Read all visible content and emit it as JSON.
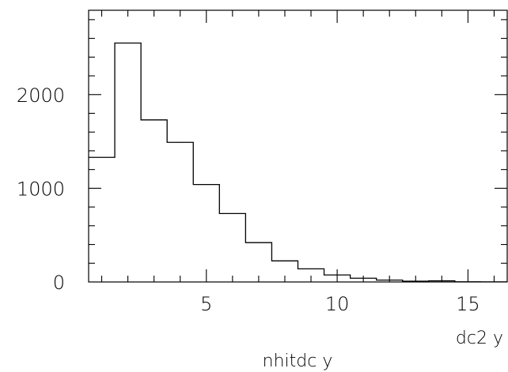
{
  "chart_data": {
    "type": "histogram",
    "title": "",
    "xlabel": "nhitdc y",
    "corner_label": "dc2 y",
    "ylabel": "",
    "xlim": [
      0.5,
      16.5
    ],
    "ylim": [
      0,
      2900
    ],
    "bin_width": 1,
    "bin_edges": [
      0.5,
      1.5,
      2.5,
      3.5,
      4.5,
      5.5,
      6.5,
      7.5,
      8.5,
      9.5,
      10.5,
      11.5,
      12.5,
      13.5,
      14.5,
      15.5,
      16.5
    ],
    "values": [
      1330,
      2550,
      1730,
      1490,
      1040,
      730,
      420,
      225,
      140,
      75,
      40,
      20,
      8,
      12,
      2,
      1
    ],
    "x_tick_labels": [
      "5",
      "10",
      "15"
    ],
    "x_tick_values": [
      5,
      10,
      15
    ],
    "y_tick_labels": [
      "0",
      "1000",
      "2000"
    ],
    "y_tick_values": [
      0,
      1000,
      2000
    ],
    "grid": false,
    "legend": "none"
  }
}
